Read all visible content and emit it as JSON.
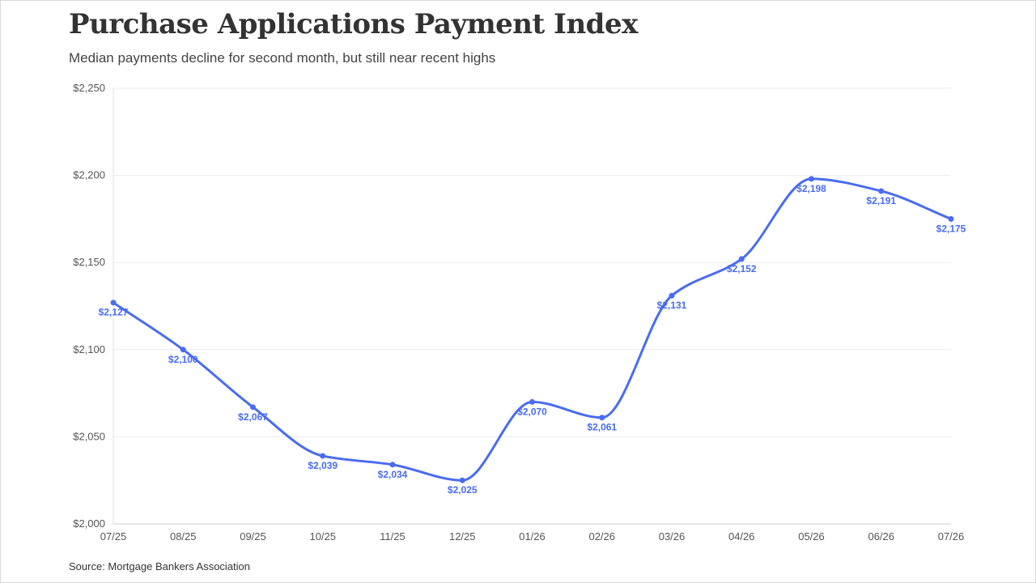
{
  "title": "Purchase Applications Payment Index",
  "subtitle": "Median payments decline for second month, but still near recent highs",
  "source": "Source: Mortgage Bankers Association",
  "chart_data": {
    "type": "line",
    "title": "Purchase Applications Payment Index",
    "subtitle": "Median payments decline for second month, but still near recent highs",
    "xlabel": "",
    "ylabel": "",
    "categories": [
      "07/25",
      "08/25",
      "09/25",
      "10/25",
      "11/25",
      "12/25",
      "01/26",
      "02/26",
      "03/26",
      "04/26",
      "05/26",
      "06/26",
      "07/26"
    ],
    "series": [
      {
        "values": [
          2127,
          2100,
          2067,
          2039,
          2034,
          2025,
          2070,
          2061,
          2131,
          2152,
          2198,
          2191,
          2175
        ]
      }
    ],
    "data_labels": [
      "$2,127",
      "$2,100",
      "$2,067",
      "$2,039",
      "$2,034",
      "$2,025",
      "$2,070",
      "$2,061",
      "$2,131",
      "$2,152",
      "$2,198",
      "$2,191",
      "$2,175"
    ],
    "ylim": [
      2000,
      2250
    ],
    "yticks": [
      2000,
      2050,
      2100,
      2150,
      2200,
      2250
    ],
    "ytick_labels": [
      "$2,000",
      "$2,050",
      "$2,100",
      "$2,150",
      "$2,200",
      "$2,250"
    ],
    "grid": true,
    "legend": "none",
    "line_color": "#4a6cf0",
    "grid_color": "#ececec"
  }
}
